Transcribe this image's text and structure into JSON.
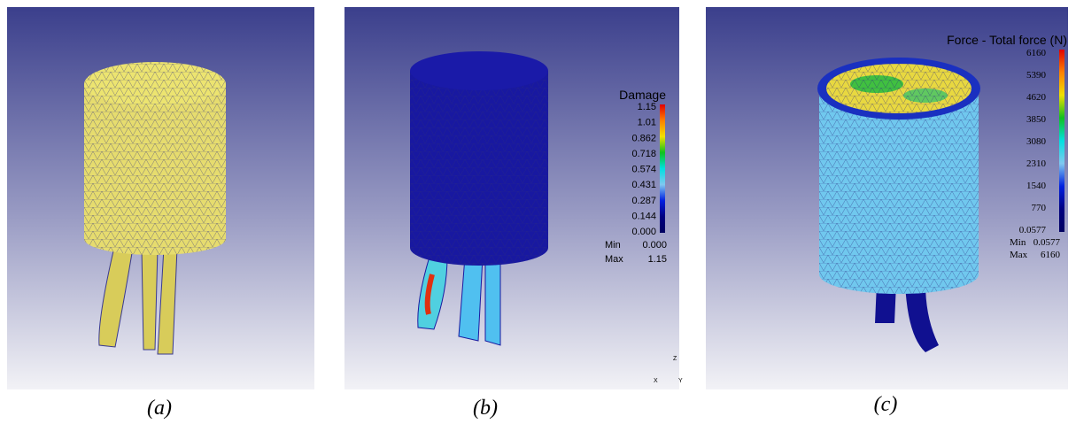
{
  "panels": [
    {
      "caption": "(a)"
    },
    {
      "caption": "(b)",
      "triad": [
        "Z",
        "X",
        "Y"
      ],
      "legend": {
        "title": "Damage",
        "ticks": [
          "1.15",
          "1.01",
          "0.862",
          "0.718",
          "0.574",
          "0.431",
          "0.287",
          "0.144",
          "0.000"
        ],
        "min_label": "Min",
        "min": "0.000",
        "max_label": "Max",
        "max": "1.15"
      }
    },
    {
      "caption": "(c)",
      "legend": {
        "title": "Force - Total force (N)",
        "ticks": [
          "6160",
          "5390",
          "4620",
          "3850",
          "3080",
          "2310",
          "1540",
          "770",
          "0.0577"
        ],
        "min_label": "Min",
        "min": "0.0577",
        "max_label": "Max",
        "max": "6160"
      }
    }
  ]
}
